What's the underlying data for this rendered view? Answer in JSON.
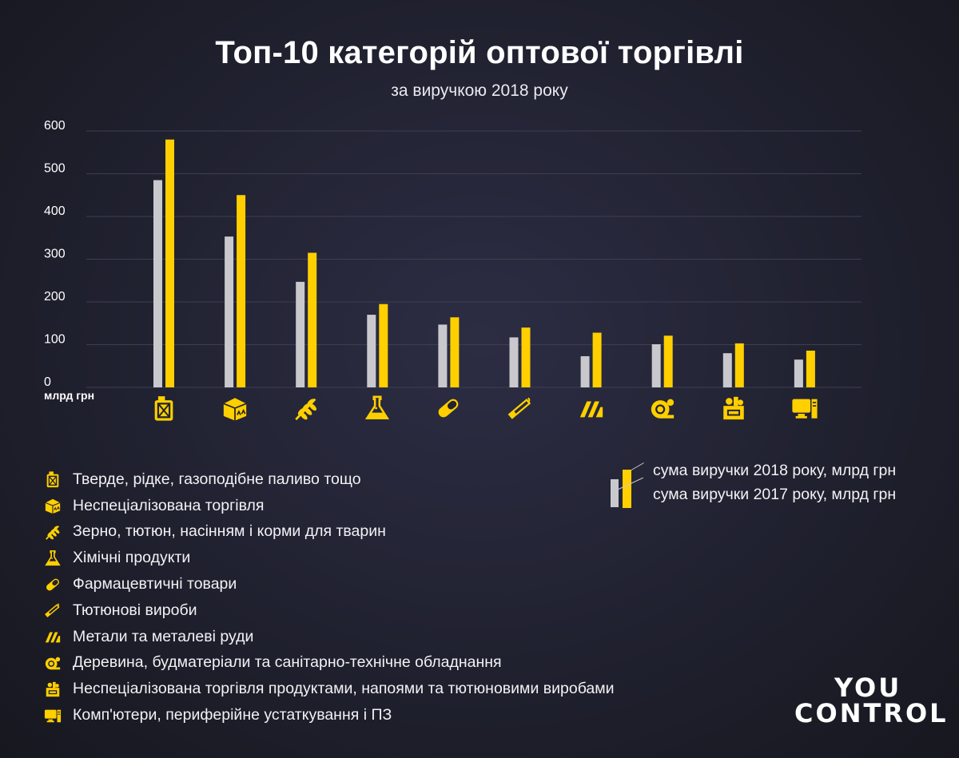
{
  "title": "Топ-10 категорій оптової торгівлі",
  "subtitle": "за виручкою 2018 року",
  "colors": {
    "series2018": "#ffcf00",
    "series2017": "#c9c9cd",
    "grid": "#3d3e52",
    "axis_text": "#ffffff"
  },
  "chart_data": {
    "type": "bar",
    "title": "Топ-10 категорій оптової торгівлі",
    "subtitle": "за виручкою 2018 року",
    "ylabel": "млрд грн",
    "ylim": [
      0,
      600
    ],
    "yticks": [
      0,
      100,
      200,
      300,
      400,
      500,
      600
    ],
    "grid": true,
    "legend_position": "right",
    "categories": [
      "Тверде, рідке, газоподібне паливо тощо",
      "Неспеціалізована торгівля",
      "Зерно, тютюн, насінням і корми для тварин",
      "Хімічні продукти",
      "Фармацевтичні товари",
      "Тютюнові вироби",
      "Метали та металеві руди",
      "Деревина, будматеріали та санітарно-технічне обладнання",
      "Неспеціалізована торгівля продуктами, напоями та тютюновими виробами",
      "Комп'ютери, периферійне устаткування і ПЗ"
    ],
    "series": [
      {
        "name": "сума виручки 2017 року, млрд грн",
        "values": [
          485,
          353,
          247,
          170,
          147,
          117,
          73,
          101,
          80,
          65
        ]
      },
      {
        "name": "сума виручки 2018 року, млрд грн",
        "values": [
          580,
          450,
          315,
          195,
          164,
          140,
          128,
          121,
          103,
          86
        ]
      }
    ]
  },
  "categories_legend": [
    {
      "icon": "fuel-canister-icon",
      "label": "Тверде, рідке, газоподібне паливо тощо"
    },
    {
      "icon": "package-box-icon",
      "label": "Неспеціалізована торгівля"
    },
    {
      "icon": "wheat-icon",
      "label": "Зерно, тютюн, насінням і корми для тварин"
    },
    {
      "icon": "flask-icon",
      "label": "Хімічні продукти"
    },
    {
      "icon": "pill-icon",
      "label": "Фармацевтичні товари"
    },
    {
      "icon": "cigarette-icon",
      "label": "Тютюнові вироби"
    },
    {
      "icon": "metal-ingot-icon",
      "label": "Метали та металеві руди"
    },
    {
      "icon": "timber-log-icon",
      "label": "Деревина, будматеріали та санітарно-технічне обладнання"
    },
    {
      "icon": "grocery-basket-icon",
      "label": "Неспеціалізована торгівля продуктами, напоями та тютюновими виробами"
    },
    {
      "icon": "computer-icon",
      "label": "Комп'ютери, периферійне устаткування і ПЗ"
    }
  ],
  "series_legend": {
    "label_2018": "сума виручки 2018 року, млрд грн",
    "label_2017": "сума виручки 2017 року, млрд грн"
  },
  "logo": {
    "line1": "YOU",
    "line2": "CONTROL"
  }
}
